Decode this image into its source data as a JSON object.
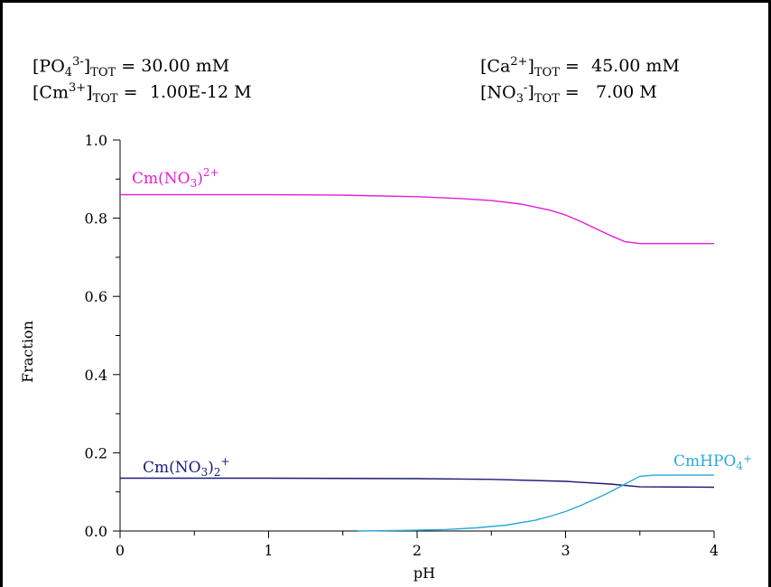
{
  "concentrations": {
    "po4": {
      "label_base": "[PO",
      "sub1": "4",
      "sup": "3-",
      "close": "]",
      "sub2": "TOT",
      "eq": "=",
      "value": "30.00 mM"
    },
    "cm": {
      "label_base": "[Cm",
      "sup": "3+",
      "close": "]",
      "sub2": "TOT",
      "eq": "=",
      "value": "1.00E-12 M"
    },
    "ca": {
      "label_base": "[Ca",
      "sup": "2+",
      "close": "]",
      "sub2": "TOT",
      "eq": "=",
      "value": "45.00 mM"
    },
    "no3": {
      "label_base": "[NO",
      "sub1": "3",
      "sup": "-",
      "close": "]",
      "sub2": "TOT",
      "eq": "=",
      "value": "7.00 M"
    }
  },
  "chart_data": {
    "type": "line",
    "xlabel": "pH",
    "ylabel": "Fraction",
    "xlim": [
      0,
      4
    ],
    "ylim": [
      0,
      1.0
    ],
    "x_ticks": [
      "0",
      "1",
      "2",
      "3",
      "4"
    ],
    "y_ticks": [
      "0.0",
      "0.2",
      "0.4",
      "0.6",
      "0.8",
      "1.0"
    ],
    "grid": false,
    "series": [
      {
        "name": "Cm(NO3)2+",
        "label_parts": {
          "pre": "Cm(NO",
          "sub": "3",
          "post": ")",
          "sup": "2+"
        },
        "color": "#e21ed6",
        "x": [
          0,
          0.5,
          1.0,
          1.5,
          2.0,
          2.3,
          2.5,
          2.7,
          2.9,
          3.0,
          3.1,
          3.2,
          3.3,
          3.4,
          3.5,
          3.6,
          4.0
        ],
        "y": [
          0.86,
          0.86,
          0.86,
          0.859,
          0.855,
          0.85,
          0.845,
          0.836,
          0.82,
          0.808,
          0.792,
          0.774,
          0.756,
          0.74,
          0.735,
          0.735,
          0.735
        ]
      },
      {
        "name": "Cm(NO3)2+",
        "label_parts": {
          "pre": "Cm(NO",
          "sub": "3",
          "post": ")",
          "sub2": "2",
          "sup": "+"
        },
        "color": "#1a1a7a",
        "x": [
          0,
          1.0,
          2.0,
          2.5,
          3.0,
          3.3,
          3.5,
          4.0
        ],
        "y": [
          0.135,
          0.135,
          0.134,
          0.132,
          0.127,
          0.12,
          0.113,
          0.112
        ]
      },
      {
        "name": "CmHPO4+",
        "label_parts": {
          "pre": "CmHPO",
          "sub": "4",
          "sup": "+"
        },
        "color": "#29a9d9",
        "x": [
          1.6,
          1.8,
          2.0,
          2.2,
          2.4,
          2.6,
          2.8,
          2.9,
          3.0,
          3.1,
          3.2,
          3.3,
          3.4,
          3.5,
          3.6,
          4.0
        ],
        "y": [
          0.0,
          0.001,
          0.002,
          0.004,
          0.008,
          0.015,
          0.028,
          0.038,
          0.05,
          0.065,
          0.082,
          0.1,
          0.12,
          0.14,
          0.143,
          0.143
        ]
      }
    ]
  }
}
